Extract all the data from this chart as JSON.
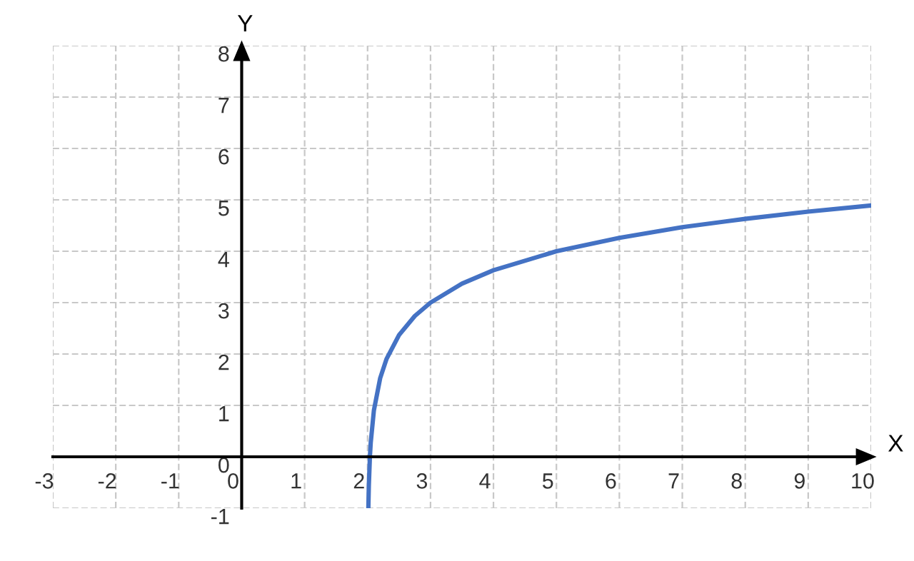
{
  "chart_data": {
    "type": "line",
    "xlabel": "X",
    "ylabel": "Y",
    "series": [
      {
        "color": "#4472c4",
        "x": [
          2.0123,
          2.02,
          2.037,
          2.05,
          2.1,
          2.2,
          2.3,
          2.5,
          2.75,
          3,
          3.5,
          4,
          5,
          6,
          7,
          8,
          9,
          10
        ],
        "values": [
          -1,
          -0.56,
          0,
          0.27,
          0.9,
          1.53,
          1.9,
          2.37,
          2.74,
          3,
          3.37,
          3.63,
          4,
          4.26,
          4.47,
          4.63,
          4.77,
          4.89
        ]
      }
    ],
    "xlim": [
      -3,
      10
    ],
    "ylim": [
      -1,
      8
    ],
    "xticks": [
      -3,
      -2,
      -1,
      0,
      1,
      2,
      3,
      4,
      5,
      6,
      7,
      8,
      9,
      10
    ],
    "yticks": [
      -1,
      0,
      1,
      2,
      3,
      4,
      5,
      6,
      7,
      8
    ],
    "grid": true,
    "line_style": "solid",
    "marker": "none"
  }
}
